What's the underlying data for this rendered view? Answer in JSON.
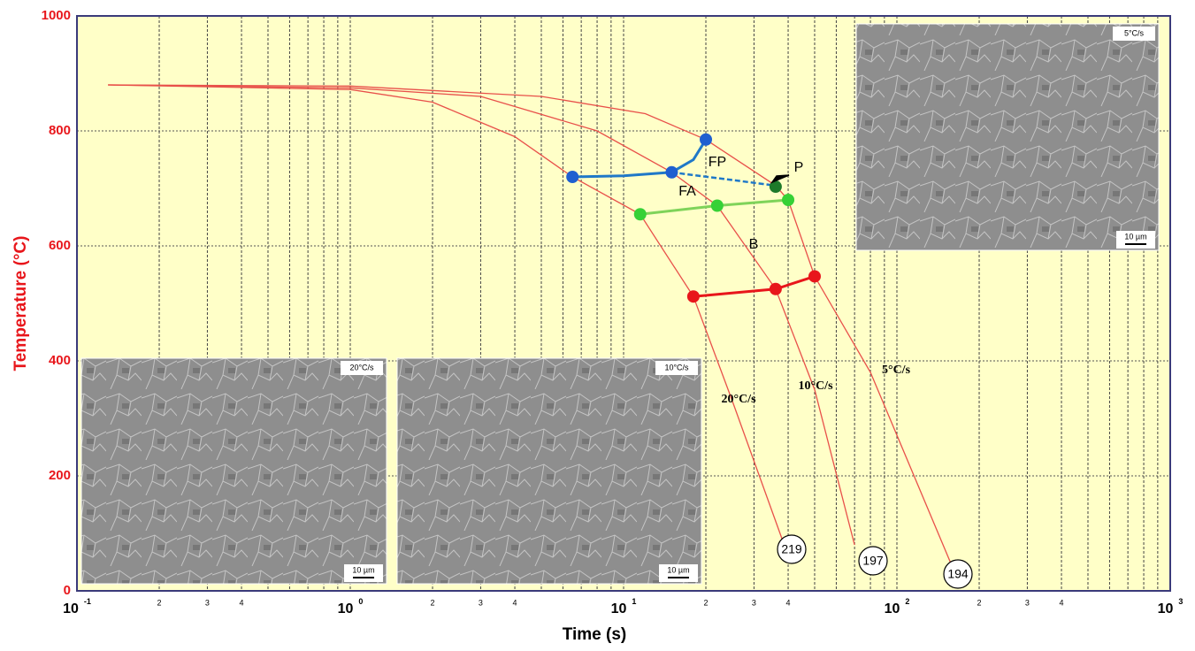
{
  "chart_data": {
    "type": "line",
    "x_label": "Time (s)",
    "y_label": "Temperature (°C)",
    "xscale": "log",
    "xlim": [
      0.1,
      1000
    ],
    "ylim": [
      0,
      1000
    ],
    "xticks": [
      {
        "value": 0.1,
        "label": "10",
        "exponent": "-1"
      },
      {
        "value": 1,
        "label": "10",
        "exponent": "0"
      },
      {
        "value": 10,
        "label": "10",
        "exponent": "1"
      },
      {
        "value": 100,
        "label": "10",
        "exponent": "2"
      },
      {
        "value": 1000,
        "label": "10",
        "exponent": "3"
      }
    ],
    "xminorticks": [
      {
        "value": 0.2,
        "label": "2"
      },
      {
        "value": 0.3,
        "label": "3"
      },
      {
        "value": 0.4,
        "label": "4"
      },
      {
        "value": 2,
        "label": "2"
      },
      {
        "value": 3,
        "label": "3"
      },
      {
        "value": 4,
        "label": "4"
      },
      {
        "value": 20,
        "label": "2"
      },
      {
        "value": 30,
        "label": "3"
      },
      {
        "value": 40,
        "label": "4"
      },
      {
        "value": 200,
        "label": "2"
      },
      {
        "value": 300,
        "label": "3"
      },
      {
        "value": 400,
        "label": "4"
      }
    ],
    "xgrid": [
      0.5,
      0.6,
      0.7,
      0.8,
      0.9,
      5,
      6,
      7,
      8,
      9,
      50,
      60,
      70,
      80,
      90,
      500,
      600,
      700,
      800,
      900
    ],
    "yticks": [
      0,
      200,
      400,
      600,
      800,
      1000
    ],
    "grid": true,
    "series": [
      {
        "name": "20°C/s",
        "color": "#e8504a",
        "hardness": "219",
        "x": [
          0.13,
          1,
          2,
          4,
          6.5,
          11.5,
          18,
          25,
          38
        ],
        "values": [
          880,
          872,
          850,
          790,
          720,
          655,
          512,
          330,
          90
        ]
      },
      {
        "name": "10°C/s",
        "color": "#e8504a",
        "hardness": "197",
        "x": [
          0.13,
          1,
          3,
          8,
          15,
          22,
          36,
          50,
          70
        ],
        "values": [
          880,
          875,
          860,
          800,
          728,
          670,
          525,
          350,
          80
        ]
      },
      {
        "name": "5°C/s",
        "color": "#e8504a",
        "hardness": "194",
        "x": [
          0.13,
          1,
          5,
          12,
          20,
          36,
          40,
          50,
          80,
          160
        ],
        "values": [
          880,
          878,
          860,
          830,
          785,
          705,
          680,
          547,
          380,
          40
        ]
      }
    ],
    "transformation_lines": [
      {
        "color": "#1f78c8",
        "style": "solid",
        "x": [
          6.5,
          10,
          15,
          18,
          20
        ],
        "values": [
          720,
          722,
          728,
          750,
          785
        ]
      },
      {
        "color": "#1f78c8",
        "style": "dashed",
        "x": [
          15,
          36
        ],
        "values": [
          728,
          705
        ]
      },
      {
        "color": "#7fd35a",
        "style": "solid",
        "x": [
          11.5,
          22,
          40
        ],
        "values": [
          655,
          670,
          680
        ]
      },
      {
        "color": "#e8161b",
        "style": "solid",
        "x": [
          18,
          36,
          50
        ],
        "values": [
          512,
          525,
          547
        ]
      }
    ],
    "transformation_points": [
      {
        "color": "#1f5fd0",
        "x": [
          6.5,
          15,
          20
        ],
        "values": [
          720,
          728,
          785
        ]
      },
      {
        "color": "#36d136",
        "x": [
          11.5,
          22,
          40
        ],
        "values": [
          655,
          670,
          680
        ]
      },
      {
        "color": "#e8161b",
        "x": [
          18,
          36,
          50
        ],
        "values": [
          512,
          525,
          547
        ]
      },
      {
        "color": "#1e7a2a",
        "x": [
          36
        ],
        "values": [
          703
        ]
      }
    ],
    "annotations": [
      "FP",
      "FA",
      "P",
      "B"
    ],
    "insets": [
      {
        "label": "20°C/s",
        "scale": "10 µm"
      },
      {
        "label": "10°C/s",
        "scale": "10 µm"
      },
      {
        "label": "5°C/s",
        "scale": "10 µm"
      }
    ]
  }
}
